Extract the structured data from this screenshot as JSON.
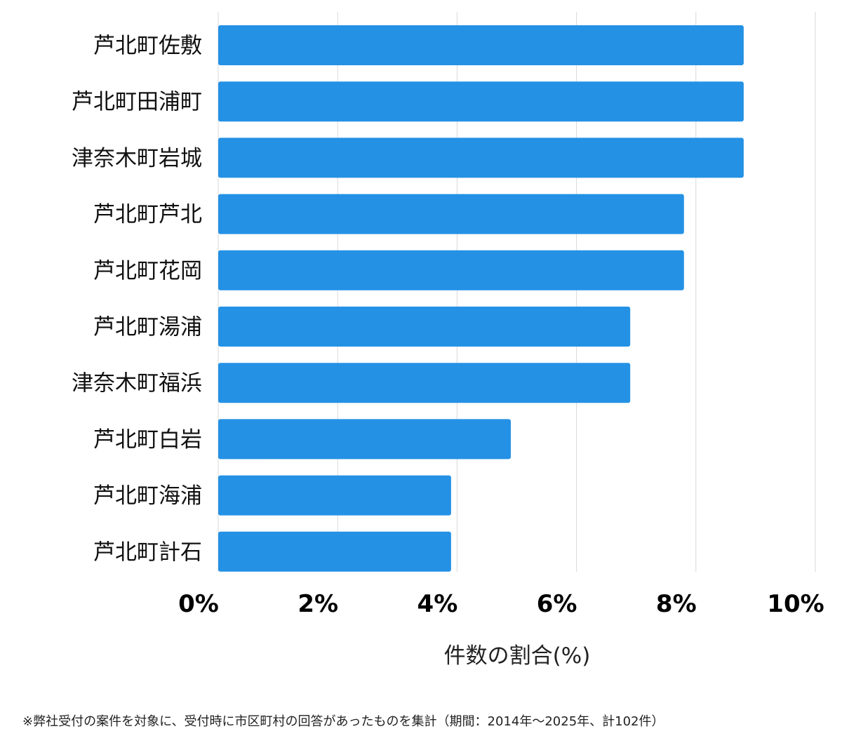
{
  "chart_data": {
    "type": "bar",
    "orientation": "horizontal",
    "categories": [
      "芦北町佐敷",
      "芦北町田浦町",
      "津奈木町岩城",
      "芦北町芦北",
      "芦北町花岡",
      "芦北町湯浦",
      "津奈木町福浜",
      "芦北町白岩",
      "芦北町海浦",
      "芦北町計石"
    ],
    "values": [
      8.8,
      8.8,
      8.8,
      7.8,
      7.8,
      6.9,
      6.9,
      4.9,
      3.9,
      3.9
    ],
    "xlim": [
      0,
      10
    ],
    "xticks": [
      0,
      2,
      4,
      6,
      8,
      10
    ],
    "xtick_labels": [
      "0%",
      "2%",
      "4%",
      "6%",
      "8%",
      "10%"
    ],
    "xlabel": "件数の割合(%)",
    "ylabel": "",
    "title": "",
    "grid": "vertical",
    "bar_color": "#2491e5",
    "gridline_color": "#d9d9d9"
  },
  "footnote": "※弊社受付の案件を対象に、受付時に市区町村の回答があったものを集計（期間：2014年～2025年、計102件）"
}
